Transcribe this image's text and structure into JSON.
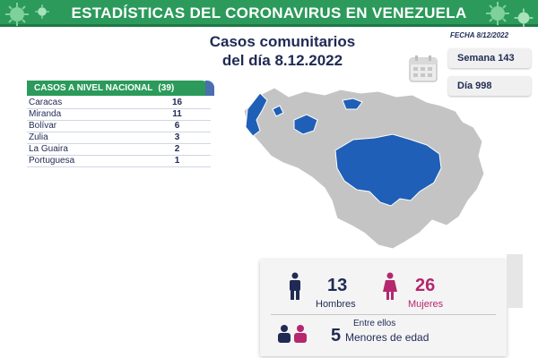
{
  "header": {
    "title": "ESTADÍSTICAS DEL CORONAVIRUS EN VENEZUELA"
  },
  "subtitle": {
    "line1": "Casos comunitarios",
    "line2": "del día 8.12.2022"
  },
  "fecha": "FECHA 8/12/2022",
  "semana": "Semana 143",
  "dia": "Día 998",
  "cases_table": {
    "header_label": "CASOS A NIVEL NACIONAL",
    "header_total": "(39)",
    "rows": [
      {
        "state": "Caracas",
        "cases": "16"
      },
      {
        "state": "Miranda",
        "cases": "11"
      },
      {
        "state": "Bolívar",
        "cases": "6"
      },
      {
        "state": "Zulia",
        "cases": "3"
      },
      {
        "state": "La Guaira",
        "cases": "2"
      },
      {
        "state": "Portuguesa",
        "cases": "1"
      }
    ]
  },
  "stats": {
    "hombres_num": "13",
    "hombres_label": "Hombres",
    "mujeres_num": "26",
    "mujeres_label": "Mujeres",
    "entre_label": "Entre ellos",
    "menores_num": "5",
    "menores_label": "Menores de edad"
  },
  "colors": {
    "banner_green": "#2b9a5a",
    "highlight_blue": "#1f5fb8",
    "map_gray": "#c4c4c4",
    "navy": "#1f2a55",
    "magenta": "#b5276e"
  }
}
